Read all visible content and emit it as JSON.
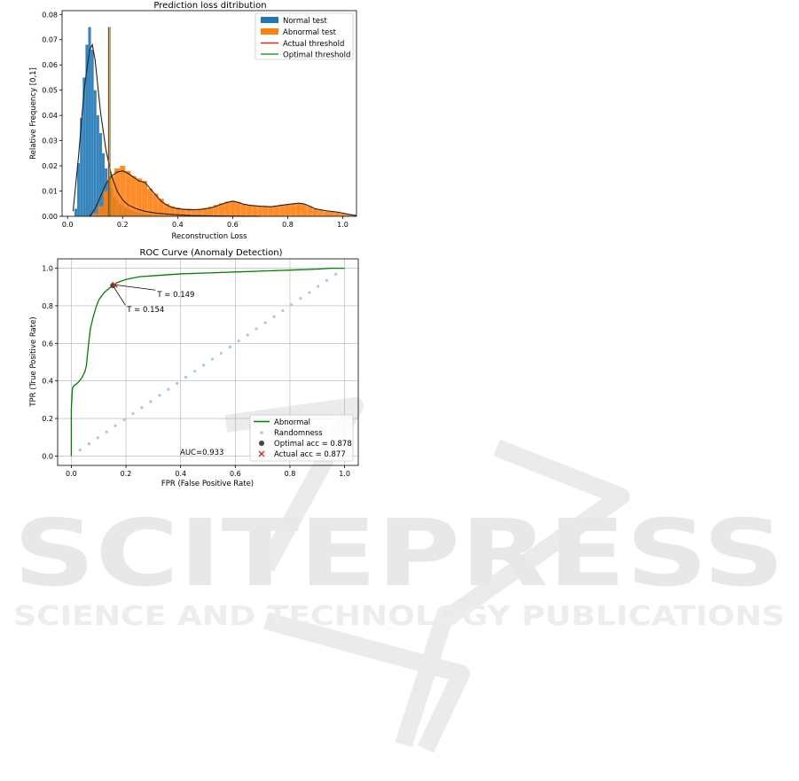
{
  "watermark": {
    "word": "SCITEPRESS",
    "subtitle": "SCIENCE AND TECHNOLOGY PUBLICATIONS"
  },
  "chart_data": [
    {
      "type": "bar",
      "title": "Prediction loss ditribution",
      "xlabel": "Reconstruction Loss",
      "ylabel": "Relative Frequency [0,1]",
      "xlim": [
        -0.02,
        1.05
      ],
      "ylim": [
        0,
        0.0815
      ],
      "xticks": [
        "0.0",
        "0.2",
        "0.4",
        "0.6",
        "0.8",
        "1.0"
      ],
      "xtick_values": [
        0,
        0.2,
        0.4,
        0.6,
        0.8,
        1.0
      ],
      "yticks": [
        "0.00",
        "0.01",
        "0.02",
        "0.03",
        "0.04",
        "0.05",
        "0.06",
        "0.07",
        "0.08"
      ],
      "ytick_values": [
        0,
        0.01,
        0.02,
        0.03,
        0.04,
        0.05,
        0.06,
        0.07,
        0.08
      ],
      "legend_position": "top-right",
      "series": [
        {
          "name": "Normal test",
          "color": "#1f77b4",
          "x": [
            0.03,
            0.04,
            0.05,
            0.06,
            0.07,
            0.08,
            0.09,
            0.1,
            0.11,
            0.12,
            0.13,
            0.14,
            0.15,
            0.16,
            0.17,
            0.18,
            0.19,
            0.2,
            0.21,
            0.22,
            0.23,
            0.24,
            0.25,
            0.26,
            0.27,
            0.28,
            0.29,
            0.3,
            0.32,
            0.34,
            0.36,
            0.38,
            0.4,
            0.42
          ],
          "y": [
            0.003,
            0.021,
            0.039,
            0.055,
            0.068,
            0.075,
            0.066,
            0.05,
            0.04,
            0.033,
            0.025,
            0.019,
            0.014,
            0.011,
            0.008,
            0.0065,
            0.005,
            0.0042,
            0.0035,
            0.003,
            0.0025,
            0.002,
            0.0017,
            0.0014,
            0.0012,
            0.001,
            0.0009,
            0.0008,
            0.0006,
            0.0005,
            0.0004,
            0.0003,
            0.0002,
            0.0001
          ]
        },
        {
          "name": "Abnormal test",
          "color": "#ff7f0e",
          "x": [
            0.1,
            0.12,
            0.14,
            0.16,
            0.18,
            0.2,
            0.22,
            0.24,
            0.26,
            0.28,
            0.3,
            0.32,
            0.34,
            0.36,
            0.38,
            0.4,
            0.42,
            0.44,
            0.46,
            0.48,
            0.5,
            0.52,
            0.54,
            0.56,
            0.58,
            0.6,
            0.62,
            0.64,
            0.66,
            0.68,
            0.7,
            0.72,
            0.74,
            0.76,
            0.78,
            0.8,
            0.82,
            0.84,
            0.86,
            0.88,
            0.9,
            0.92,
            0.94,
            0.96,
            0.98,
            1.0,
            1.02,
            1.04
          ],
          "y": [
            0.001,
            0.004,
            0.01,
            0.016,
            0.019,
            0.02,
            0.018,
            0.016,
            0.015,
            0.014,
            0.011,
            0.009,
            0.007,
            0.005,
            0.004,
            0.0035,
            0.003,
            0.003,
            0.0028,
            0.003,
            0.0033,
            0.0038,
            0.0045,
            0.0052,
            0.0058,
            0.0062,
            0.0057,
            0.0048,
            0.0044,
            0.0042,
            0.004,
            0.004,
            0.0038,
            0.0042,
            0.0046,
            0.0048,
            0.005,
            0.0052,
            0.0048,
            0.004,
            0.003,
            0.0025,
            0.002,
            0.0018,
            0.0015,
            0.001,
            0.0006,
            0.0003
          ]
        }
      ],
      "kde": [
        {
          "x": [
            0.02,
            0.04,
            0.06,
            0.08,
            0.09,
            0.1,
            0.12,
            0.14,
            0.16,
            0.18,
            0.2,
            0.22,
            0.25,
            0.28,
            0.32,
            0.36,
            0.4,
            0.45,
            0.5,
            0.55,
            0.6,
            0.7
          ],
          "y": [
            0.002,
            0.024,
            0.05,
            0.066,
            0.068,
            0.062,
            0.041,
            0.026,
            0.016,
            0.01,
            0.0065,
            0.0045,
            0.003,
            0.002,
            0.0013,
            0.0009,
            0.0006,
            0.0003,
            0.0002,
            0.0001,
            5e-05,
            0.0
          ]
        },
        {
          "x": [
            0.08,
            0.1,
            0.12,
            0.14,
            0.16,
            0.18,
            0.2,
            0.22,
            0.24,
            0.26,
            0.28,
            0.3,
            0.32,
            0.34,
            0.36,
            0.38,
            0.4,
            0.44,
            0.48,
            0.52,
            0.56,
            0.58,
            0.6,
            0.62,
            0.64,
            0.66,
            0.68,
            0.7,
            0.74,
            0.78,
            0.82,
            0.84,
            0.86,
            0.88,
            0.9,
            0.94,
            0.98,
            1.02,
            1.05
          ],
          "y": [
            0.0,
            0.003,
            0.008,
            0.013,
            0.016,
            0.0175,
            0.018,
            0.017,
            0.0155,
            0.014,
            0.0135,
            0.011,
            0.0085,
            0.006,
            0.0045,
            0.0035,
            0.003,
            0.0026,
            0.0027,
            0.0033,
            0.0048,
            0.0055,
            0.006,
            0.0055,
            0.0048,
            0.0044,
            0.0042,
            0.004,
            0.0038,
            0.0044,
            0.005,
            0.0052,
            0.0049,
            0.004,
            0.003,
            0.0022,
            0.0017,
            0.0008,
            0.0003
          ]
        }
      ],
      "thresholds": [
        {
          "name": "Actual threshold",
          "x": 0.149,
          "color": "#d62728"
        },
        {
          "name": "Optimal threshold",
          "x": 0.154,
          "color": "#2ca02c"
        }
      ]
    },
    {
      "type": "line",
      "title": "ROC Curve (Anomaly Detection)",
      "xlabel": "FPR (False Positive Rate)",
      "ylabel": "TPR (True Positive Rate)",
      "xlim": [
        -0.05,
        1.05
      ],
      "ylim": [
        -0.05,
        1.05
      ],
      "xticks": [
        "0.0",
        "0.2",
        "0.4",
        "0.6",
        "0.8",
        "1.0"
      ],
      "xtick_values": [
        0,
        0.2,
        0.4,
        0.6,
        0.8,
        1.0
      ],
      "yticks": [
        "0.0",
        "0.2",
        "0.4",
        "0.6",
        "0.8",
        "1.0"
      ],
      "ytick_values": [
        0,
        0.2,
        0.4,
        0.6,
        0.8,
        1.0
      ],
      "grid": true,
      "legend_position": "bottom-right",
      "series": [
        {
          "name": "Abnormal",
          "kind": "line",
          "color": "#008000",
          "x": [
            0.0,
            0.0,
            0.004,
            0.01,
            0.02,
            0.03,
            0.04,
            0.05,
            0.055,
            0.06,
            0.065,
            0.07,
            0.08,
            0.09,
            0.1,
            0.12,
            0.14,
            0.154,
            0.17,
            0.2,
            0.25,
            0.3,
            0.4,
            0.5,
            0.6,
            0.7,
            0.8,
            0.9,
            0.95,
            1.0
          ],
          "y": [
            0.0,
            0.25,
            0.36,
            0.375,
            0.385,
            0.4,
            0.42,
            0.45,
            0.48,
            0.55,
            0.62,
            0.68,
            0.74,
            0.79,
            0.83,
            0.87,
            0.895,
            0.91,
            0.925,
            0.94,
            0.955,
            0.96,
            0.97,
            0.975,
            0.98,
            0.985,
            0.99,
            0.995,
            1.0,
            1.0
          ]
        },
        {
          "name": "Randomness",
          "kind": "scatter",
          "color": "#a6c8e8",
          "x": [
            0.032,
            0.065,
            0.097,
            0.129,
            0.161,
            0.194,
            0.226,
            0.258,
            0.29,
            0.323,
            0.355,
            0.387,
            0.419,
            0.452,
            0.484,
            0.516,
            0.548,
            0.581,
            0.613,
            0.645,
            0.677,
            0.71,
            0.742,
            0.774,
            0.806,
            0.839,
            0.871,
            0.903,
            0.935,
            0.968
          ],
          "y": [
            0.032,
            0.065,
            0.097,
            0.129,
            0.161,
            0.194,
            0.226,
            0.258,
            0.29,
            0.323,
            0.355,
            0.387,
            0.419,
            0.452,
            0.484,
            0.516,
            0.548,
            0.581,
            0.613,
            0.645,
            0.677,
            0.71,
            0.742,
            0.774,
            0.806,
            0.839,
            0.871,
            0.903,
            0.935,
            0.968
          ]
        },
        {
          "name": "Optimal acc = 0.878",
          "kind": "marker",
          "marker": "circle",
          "color": "#444444",
          "x": [
            0.152
          ],
          "y": [
            0.908
          ]
        },
        {
          "name": "Actual acc = 0.877",
          "kind": "marker",
          "marker": "x",
          "color": "#d62728",
          "x": [
            0.159
          ],
          "y": [
            0.912
          ]
        }
      ],
      "annotations": [
        {
          "text": "T = 0.149",
          "x": 0.159,
          "y": 0.912
        },
        {
          "text": "T = 0.154",
          "x": 0.152,
          "y": 0.908
        }
      ],
      "auc_text": "AUC=0.933"
    }
  ]
}
